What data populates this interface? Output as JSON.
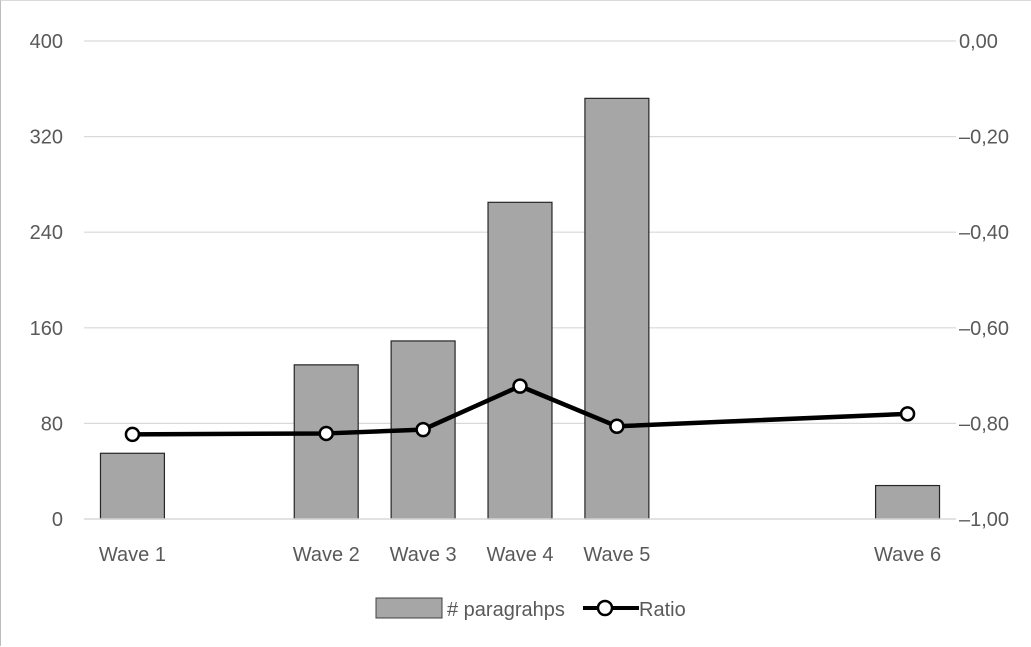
{
  "chart_data": {
    "type": "bar",
    "categories": [
      "Wave 1",
      "",
      "Wave 2",
      "Wave 3",
      "Wave 4",
      "Wave 5",
      "",
      "",
      "Wave 6"
    ],
    "series": [
      {
        "name": "# paragrahps",
        "kind": "bar",
        "axis": "left",
        "color": "#a6a6a6",
        "values": [
          55,
          null,
          129,
          149,
          265,
          352,
          null,
          null,
          28
        ]
      },
      {
        "name": "Ratio",
        "kind": "line",
        "axis": "right",
        "color": "#000000",
        "values": [
          -0.823,
          null,
          -0.821,
          -0.813,
          -0.722,
          -0.806,
          null,
          null,
          -0.78
        ]
      }
    ],
    "y_left": {
      "min": 0,
      "max": 400,
      "ticks": [
        "0",
        "80",
        "160",
        "240",
        "320",
        "400"
      ]
    },
    "y_right": {
      "min": -1.0,
      "max": 0.0,
      "ticks": [
        "-1,00",
        "-0,80",
        "-0,60",
        "-0,40",
        "-0,20",
        "0,00"
      ]
    },
    "grid": true,
    "legend_position": "bottom"
  }
}
